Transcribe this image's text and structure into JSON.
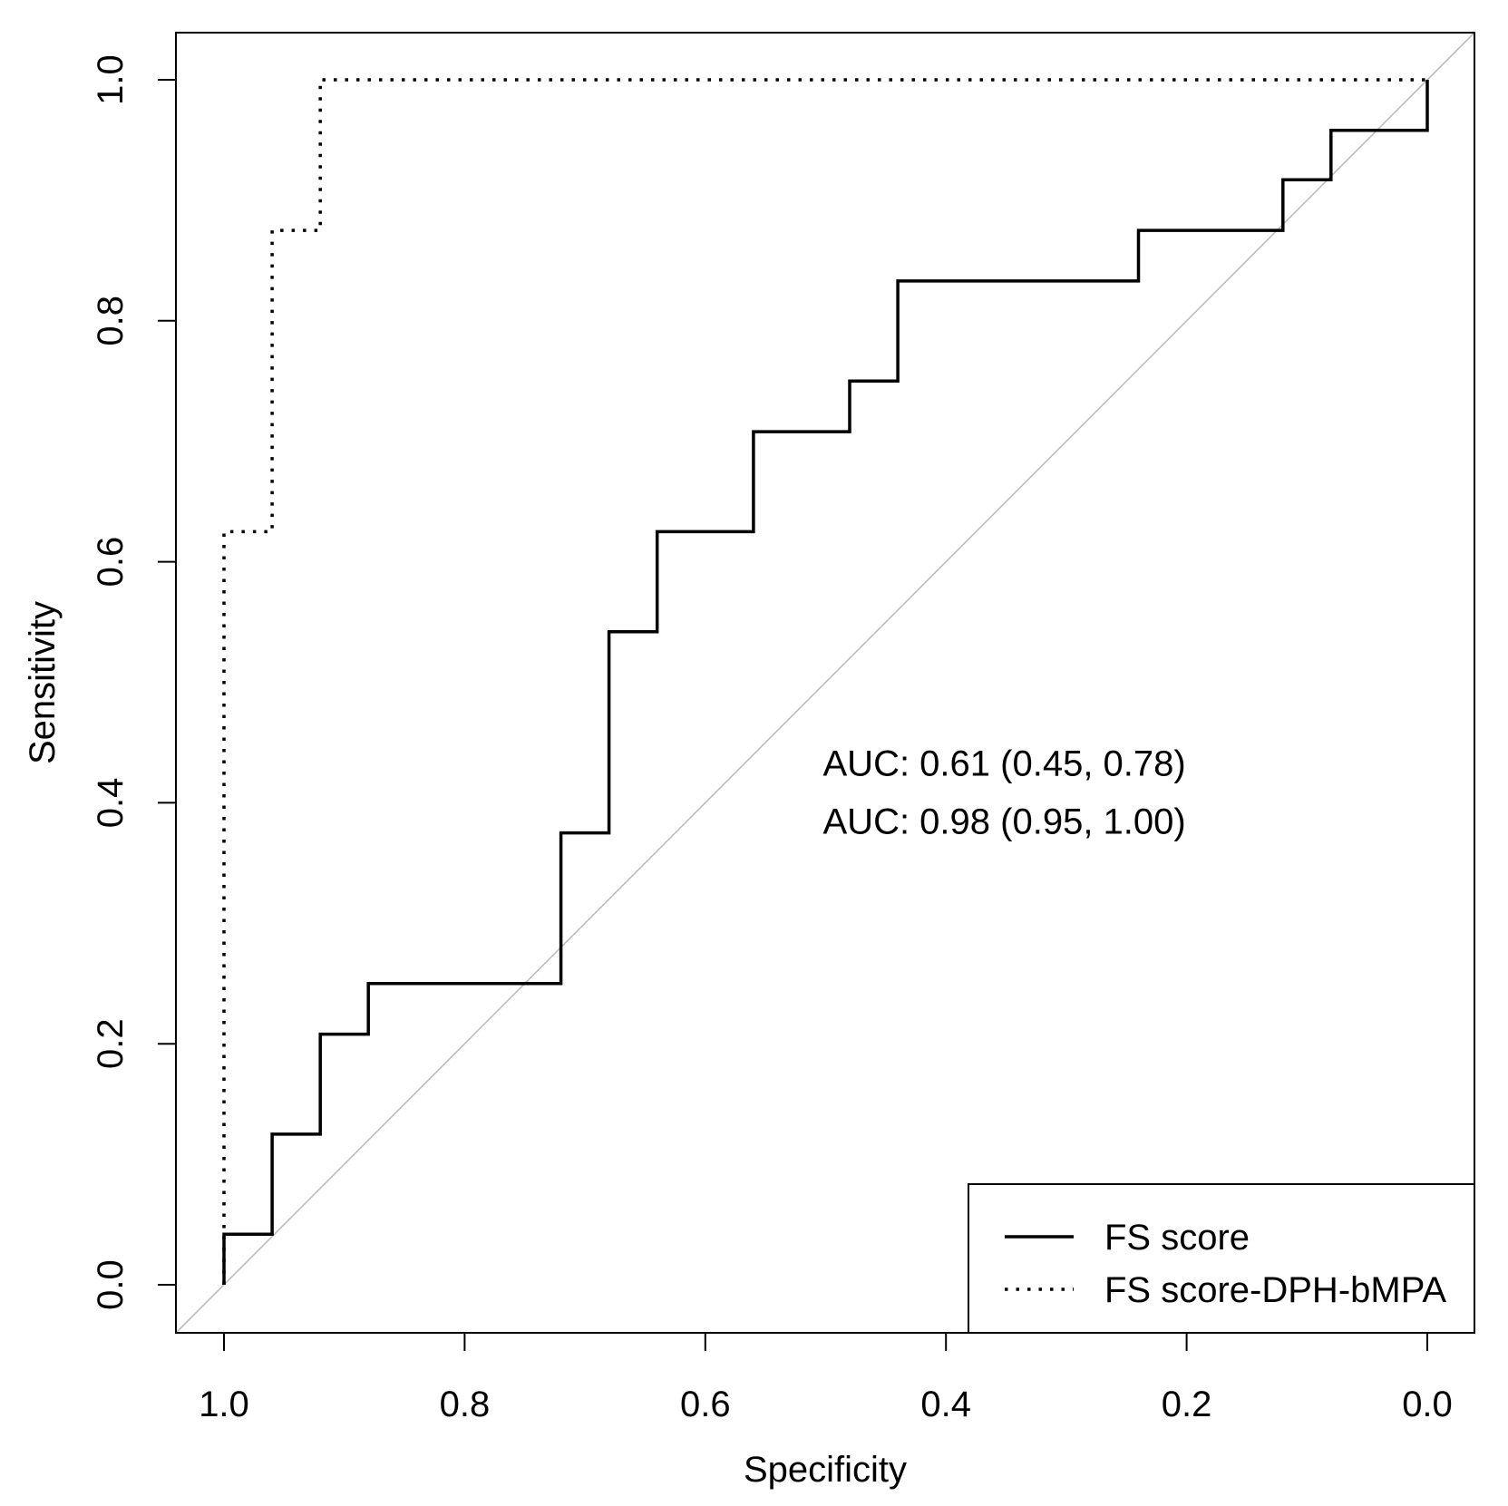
{
  "chart_data": {
    "type": "line",
    "subtype": "roc",
    "title": "",
    "xlabel": "Specificity",
    "ylabel": "Sensitivity",
    "xlim": [
      1.0,
      0.0
    ],
    "ylim": [
      0.0,
      1.0
    ],
    "x_reversed": true,
    "xticks": [
      1.0,
      0.8,
      0.6,
      0.4,
      0.2,
      0.0
    ],
    "xtick_labels": [
      "1.0",
      "0.8",
      "0.6",
      "0.4",
      "0.2",
      "0.0"
    ],
    "yticks": [
      0.0,
      0.2,
      0.4,
      0.6,
      0.8,
      1.0
    ],
    "ytick_labels": [
      "0.0",
      "0.2",
      "0.4",
      "0.6",
      "0.8",
      "1.0"
    ],
    "grid": false,
    "reference_line": {
      "from": [
        1.0,
        0.0
      ],
      "to": [
        0.0,
        1.0
      ],
      "color": "#bdbdbd"
    },
    "legend_position": "bottom-right",
    "series": [
      {
        "name": "FS score",
        "style": "solid",
        "color": "#000000",
        "points": [
          [
            1.0,
            0.0
          ],
          [
            1.0,
            0.042
          ],
          [
            0.96,
            0.042
          ],
          [
            0.96,
            0.125
          ],
          [
            0.92,
            0.125
          ],
          [
            0.92,
            0.208
          ],
          [
            0.88,
            0.208
          ],
          [
            0.88,
            0.25
          ],
          [
            0.72,
            0.25
          ],
          [
            0.72,
            0.375
          ],
          [
            0.68,
            0.375
          ],
          [
            0.68,
            0.542
          ],
          [
            0.64,
            0.542
          ],
          [
            0.64,
            0.625
          ],
          [
            0.56,
            0.625
          ],
          [
            0.56,
            0.708
          ],
          [
            0.48,
            0.708
          ],
          [
            0.48,
            0.75
          ],
          [
            0.44,
            0.75
          ],
          [
            0.44,
            0.833
          ],
          [
            0.24,
            0.833
          ],
          [
            0.24,
            0.875
          ],
          [
            0.12,
            0.875
          ],
          [
            0.12,
            0.917
          ],
          [
            0.08,
            0.917
          ],
          [
            0.08,
            0.958
          ],
          [
            0.0,
            0.958
          ],
          [
            0.0,
            1.0
          ]
        ]
      },
      {
        "name": "FS score-DPH-bMPA",
        "style": "dotted",
        "color": "#000000",
        "points": [
          [
            1.0,
            0.0
          ],
          [
            1.0,
            0.625
          ],
          [
            0.96,
            0.625
          ],
          [
            0.96,
            0.875
          ],
          [
            0.92,
            0.875
          ],
          [
            0.92,
            1.0
          ],
          [
            0.0,
            1.0
          ]
        ]
      }
    ],
    "annotations": [
      {
        "text": "AUC: 0.61 (0.45, 0.78)",
        "x": 0.5,
        "y": 0.433
      },
      {
        "text": "AUC: 0.98 (0.95, 1.00)",
        "x": 0.5,
        "y": 0.385
      }
    ]
  }
}
